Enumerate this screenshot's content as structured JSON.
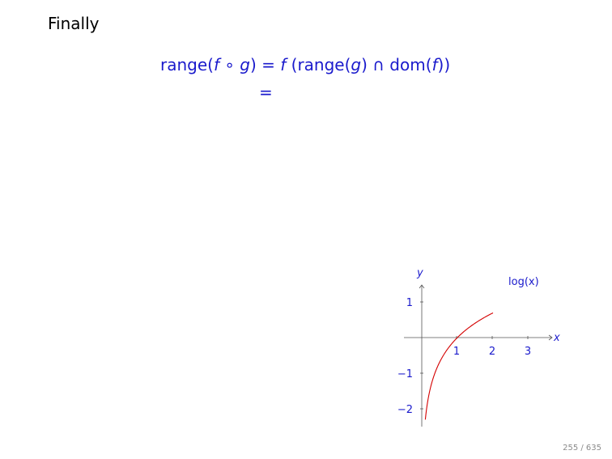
{
  "slide": {
    "title": "Finally",
    "page_number": "255 / 635"
  },
  "colors": {
    "math": "#1a1acc",
    "curve": "#d40000",
    "axis": "#555555"
  },
  "equation": {
    "line1": {
      "lhs_prefix": "range(",
      "f": "f",
      "compose": " ∘ ",
      "g": "g",
      "lhs_suffix": ")",
      "equals": " = ",
      "rhs_f": "f",
      "rhs_open": " (range(",
      "rhs_g": "g",
      "rhs_cap": ") ∩ dom(",
      "rhs_f2": "f",
      "rhs_close": "))"
    },
    "line2": {
      "equals": "="
    }
  },
  "chart_data": {
    "type": "line",
    "series": [
      {
        "name": "log(x)",
        "function": "ln(x)",
        "x_range": [
          0.1,
          2.0
        ]
      }
    ],
    "xlabel": "x",
    "ylabel": "y",
    "xticks": [
      "1",
      "2",
      "3"
    ],
    "yticks": [
      "1",
      "−1",
      "−2"
    ],
    "xlim": [
      -0.5,
      3.7
    ],
    "ylim": [
      -2.5,
      1.5
    ]
  }
}
